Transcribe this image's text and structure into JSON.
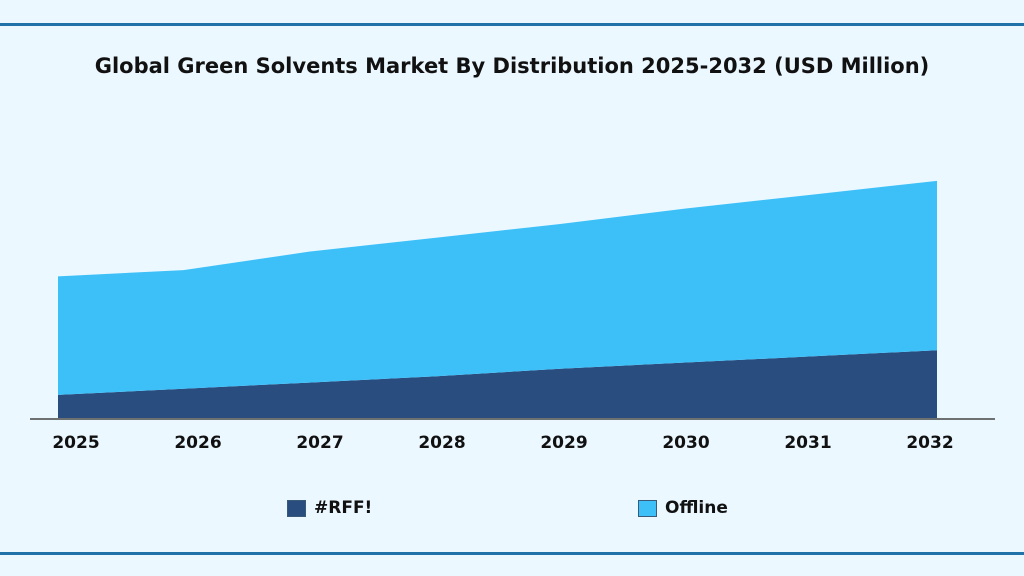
{
  "chart_data": {
    "type": "area",
    "stacked": true,
    "title": "Global Green Solvents Market By Distribution 2025-2032 (USD Million)",
    "xlabel": "",
    "ylabel": "",
    "categories": [
      "2025",
      "2026",
      "2027",
      "2028",
      "2029",
      "2030",
      "2031",
      "2032"
    ],
    "series": [
      {
        "name": "#RFF!",
        "color": "#2a4d80",
        "values": [
          15,
          19,
          23,
          27,
          32,
          36,
          40,
          44
        ]
      },
      {
        "name": "Offline",
        "color": "#3dbff8",
        "values": [
          77,
          77,
          85,
          90,
          94,
          100,
          105,
          110
        ]
      }
    ],
    "ylim": [
      0,
      200
    ],
    "y_axis_shown": false,
    "grid": false,
    "legend_position": "bottom"
  }
}
